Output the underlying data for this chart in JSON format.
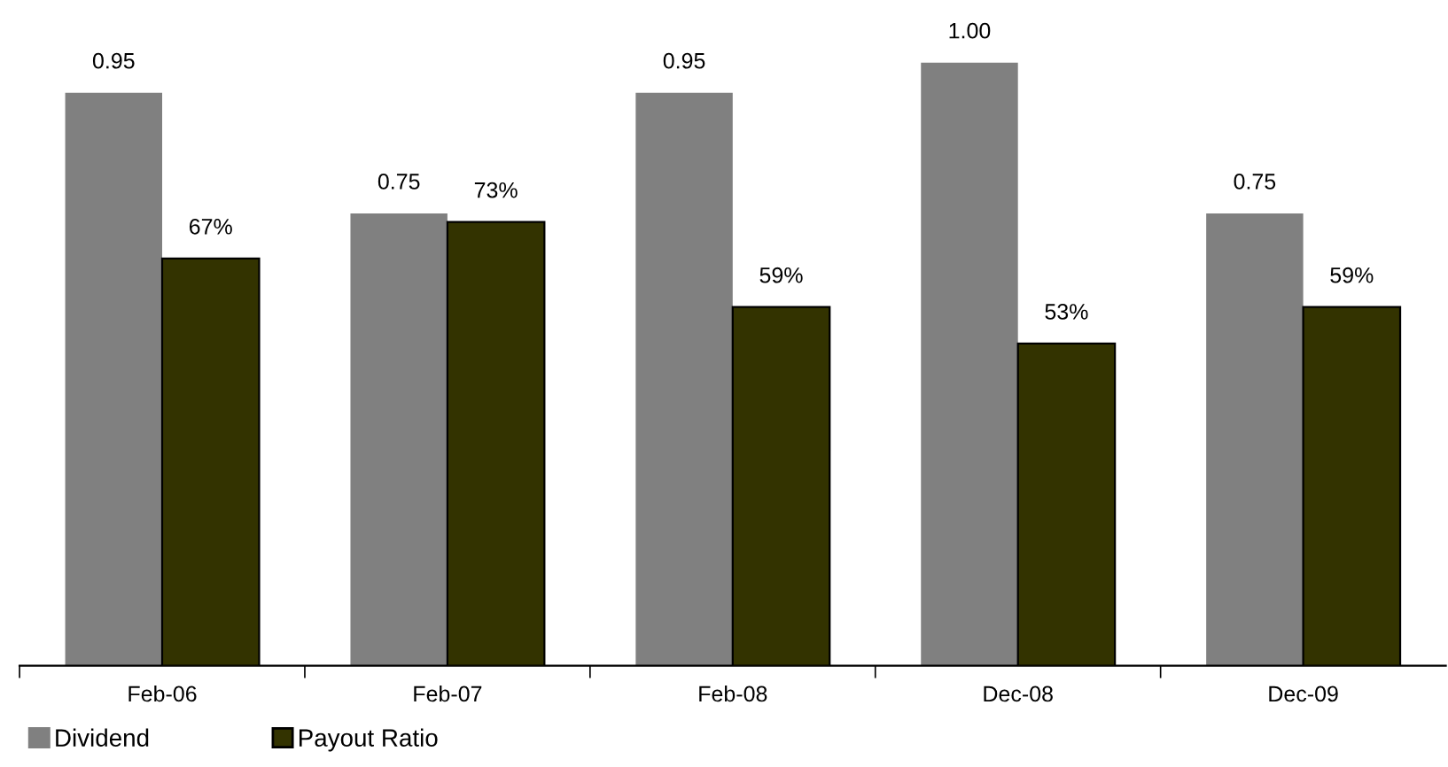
{
  "chart_data": {
    "type": "bar",
    "categories": [
      "Feb-06",
      "Feb-07",
      "Feb-08",
      "Dec-08",
      "Dec-09"
    ],
    "series": [
      {
        "name": "Dividend",
        "color": "#808080",
        "values": [
          0.95,
          0.75,
          0.95,
          1.0,
          0.75
        ],
        "value_labels": [
          "0.95",
          "0.75",
          "0.95",
          "1.00",
          "0.75"
        ]
      },
      {
        "name": "Payout Ratio",
        "color": "#333300",
        "axis": "y2",
        "values": [
          67,
          73,
          59,
          53,
          59
        ],
        "value_labels": [
          "67%",
          "73%",
          "59%",
          "53%",
          "59%"
        ]
      }
    ],
    "legend": "bottom left",
    "grid": false
  }
}
